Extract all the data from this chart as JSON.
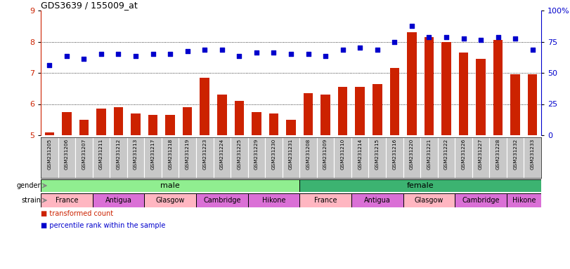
{
  "title": "GDS3639 / 155009_at",
  "samples": [
    "GSM231205",
    "GSM231206",
    "GSM231207",
    "GSM231211",
    "GSM231212",
    "GSM231213",
    "GSM231217",
    "GSM231218",
    "GSM231219",
    "GSM231223",
    "GSM231224",
    "GSM231225",
    "GSM231229",
    "GSM231230",
    "GSM231231",
    "GSM231208",
    "GSM231209",
    "GSM231210",
    "GSM231214",
    "GSM231215",
    "GSM231216",
    "GSM231220",
    "GSM231221",
    "GSM231222",
    "GSM231226",
    "GSM231227",
    "GSM231228",
    "GSM231232",
    "GSM231233"
  ],
  "bar_values": [
    5.1,
    5.75,
    5.5,
    5.85,
    5.9,
    5.7,
    5.65,
    5.65,
    5.9,
    6.85,
    6.3,
    6.1,
    5.75,
    5.7,
    5.5,
    6.35,
    6.3,
    6.55,
    6.55,
    6.65,
    7.15,
    8.3,
    8.15,
    8.0,
    7.65,
    7.45,
    8.05,
    6.95,
    6.95
  ],
  "dot_values": [
    7.25,
    7.55,
    7.45,
    7.6,
    7.6,
    7.55,
    7.6,
    7.6,
    7.7,
    7.75,
    7.75,
    7.55,
    7.65,
    7.65,
    7.6,
    7.6,
    7.55,
    7.75,
    7.8,
    7.75,
    8.0,
    8.5,
    8.15,
    8.15,
    8.1,
    8.05,
    8.15,
    8.1,
    7.75
  ],
  "gender_groups": [
    {
      "label": "male",
      "start": 0,
      "end": 15,
      "color": "#90EE90"
    },
    {
      "label": "female",
      "start": 15,
      "end": 29,
      "color": "#3CB371"
    }
  ],
  "strain_groups": [
    {
      "label": "France",
      "start": 0,
      "end": 3,
      "color": "#FFB6C1"
    },
    {
      "label": "Antigua",
      "start": 3,
      "end": 6,
      "color": "#DA70D6"
    },
    {
      "label": "Glasgow",
      "start": 6,
      "end": 9,
      "color": "#FFB6C1"
    },
    {
      "label": "Cambridge",
      "start": 9,
      "end": 12,
      "color": "#DA70D6"
    },
    {
      "label": "Hikone",
      "start": 12,
      "end": 15,
      "color": "#DA70D6"
    },
    {
      "label": "France",
      "start": 15,
      "end": 18,
      "color": "#FFB6C1"
    },
    {
      "label": "Antigua",
      "start": 18,
      "end": 21,
      "color": "#DA70D6"
    },
    {
      "label": "Glasgow",
      "start": 21,
      "end": 24,
      "color": "#FFB6C1"
    },
    {
      "label": "Cambridge",
      "start": 24,
      "end": 27,
      "color": "#DA70D6"
    },
    {
      "label": "Hikone",
      "start": 27,
      "end": 29,
      "color": "#DA70D6"
    }
  ],
  "ylim_left": [
    5,
    9
  ],
  "ylim_right": [
    0,
    100
  ],
  "yticks_left": [
    5,
    6,
    7,
    8,
    9
  ],
  "yticks_right": [
    0,
    25,
    50,
    75,
    100
  ],
  "bar_color": "#CC2200",
  "dot_color": "#0000CC",
  "bar_width": 0.55,
  "bg_color": "white",
  "xtick_bg": "#C8C8C8",
  "ylabel_left_color": "#CC2200",
  "ylabel_right_color": "#0000CC"
}
